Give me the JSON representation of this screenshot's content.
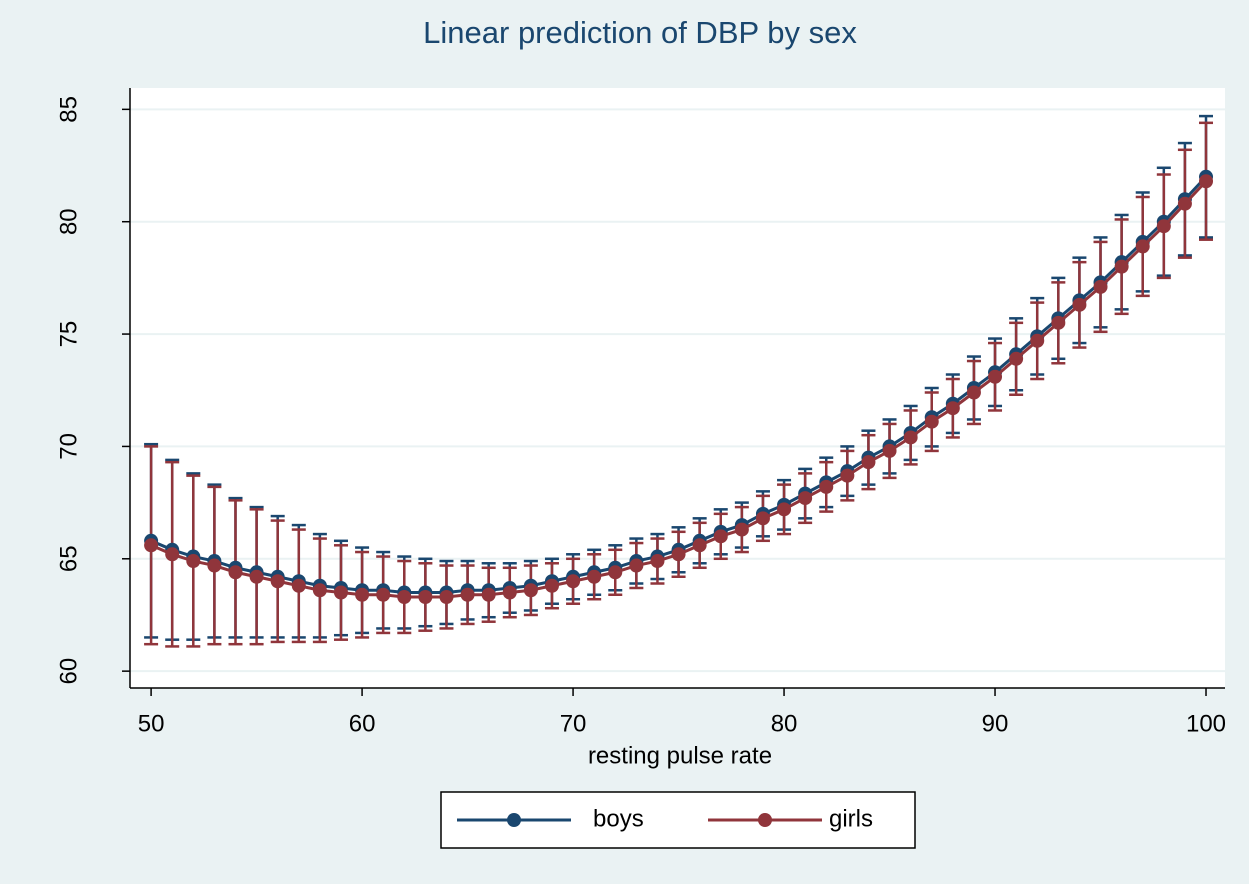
{
  "chart_data": {
    "type": "line_errorbar",
    "title": "Linear prediction of DBP by sex",
    "xlabel": "resting pulse rate",
    "x": [
      50,
      51,
      52,
      53,
      54,
      55,
      56,
      57,
      58,
      59,
      60,
      61,
      62,
      63,
      64,
      65,
      66,
      67,
      68,
      69,
      70,
      71,
      72,
      73,
      74,
      75,
      76,
      77,
      78,
      79,
      80,
      81,
      82,
      83,
      84,
      85,
      86,
      87,
      88,
      89,
      90,
      91,
      92,
      93,
      94,
      95,
      96,
      97,
      98,
      99,
      100
    ],
    "series": [
      {
        "name": "boys",
        "color": "#1a476f",
        "values": [
          65.8,
          65.4,
          65.1,
          64.9,
          64.6,
          64.4,
          64.2,
          64.0,
          63.8,
          63.7,
          63.6,
          63.6,
          63.5,
          63.5,
          63.5,
          63.6,
          63.6,
          63.7,
          63.8,
          64.0,
          64.2,
          64.4,
          64.6,
          64.9,
          65.1,
          65.4,
          65.8,
          66.2,
          66.5,
          67.0,
          67.4,
          67.9,
          68.4,
          68.9,
          69.5,
          70.0,
          70.6,
          71.3,
          71.9,
          72.6,
          73.3,
          74.1,
          74.9,
          75.7,
          76.5,
          77.3,
          78.2,
          79.1,
          80.0,
          81.0,
          82.0
        ],
        "errors": [
          4.3,
          4.0,
          3.7,
          3.4,
          3.1,
          2.9,
          2.7,
          2.5,
          2.3,
          2.1,
          1.9,
          1.7,
          1.6,
          1.5,
          1.4,
          1.3,
          1.2,
          1.1,
          1.1,
          1.0,
          1.0,
          1.0,
          1.0,
          1.0,
          1.0,
          1.0,
          1.0,
          1.0,
          1.0,
          1.0,
          1.1,
          1.1,
          1.1,
          1.1,
          1.2,
          1.2,
          1.2,
          1.3,
          1.3,
          1.4,
          1.5,
          1.6,
          1.7,
          1.8,
          1.9,
          2.0,
          2.1,
          2.2,
          2.4,
          2.5,
          2.7
        ]
      },
      {
        "name": "girls",
        "color": "#90353b",
        "values": [
          65.6,
          65.2,
          64.9,
          64.7,
          64.4,
          64.2,
          64.0,
          63.8,
          63.6,
          63.5,
          63.4,
          63.4,
          63.3,
          63.3,
          63.3,
          63.4,
          63.4,
          63.5,
          63.6,
          63.8,
          64.0,
          64.2,
          64.4,
          64.7,
          64.9,
          65.2,
          65.6,
          66.0,
          66.3,
          66.8,
          67.2,
          67.7,
          68.2,
          68.7,
          69.3,
          69.8,
          70.4,
          71.1,
          71.7,
          72.4,
          73.1,
          73.9,
          74.7,
          75.5,
          76.3,
          77.1,
          78.0,
          78.9,
          79.8,
          80.8,
          81.8
        ],
        "errors": [
          4.4,
          4.1,
          3.8,
          3.5,
          3.2,
          3.0,
          2.7,
          2.5,
          2.3,
          2.1,
          1.9,
          1.7,
          1.6,
          1.5,
          1.4,
          1.3,
          1.2,
          1.1,
          1.1,
          1.0,
          1.0,
          1.0,
          1.0,
          1.0,
          1.0,
          1.0,
          1.0,
          1.0,
          1.0,
          1.0,
          1.1,
          1.1,
          1.1,
          1.1,
          1.2,
          1.2,
          1.2,
          1.3,
          1.3,
          1.4,
          1.5,
          1.6,
          1.7,
          1.8,
          1.9,
          2.0,
          2.1,
          2.2,
          2.3,
          2.4,
          2.6
        ]
      }
    ],
    "xlim": [
      49,
      100.9
    ],
    "xticks": [
      50,
      60,
      70,
      80,
      90,
      100
    ],
    "ylim": [
      59.25,
      85.95
    ],
    "yticks": [
      60,
      65,
      70,
      75,
      80,
      85
    ],
    "grid": true,
    "legend": "bottom"
  }
}
